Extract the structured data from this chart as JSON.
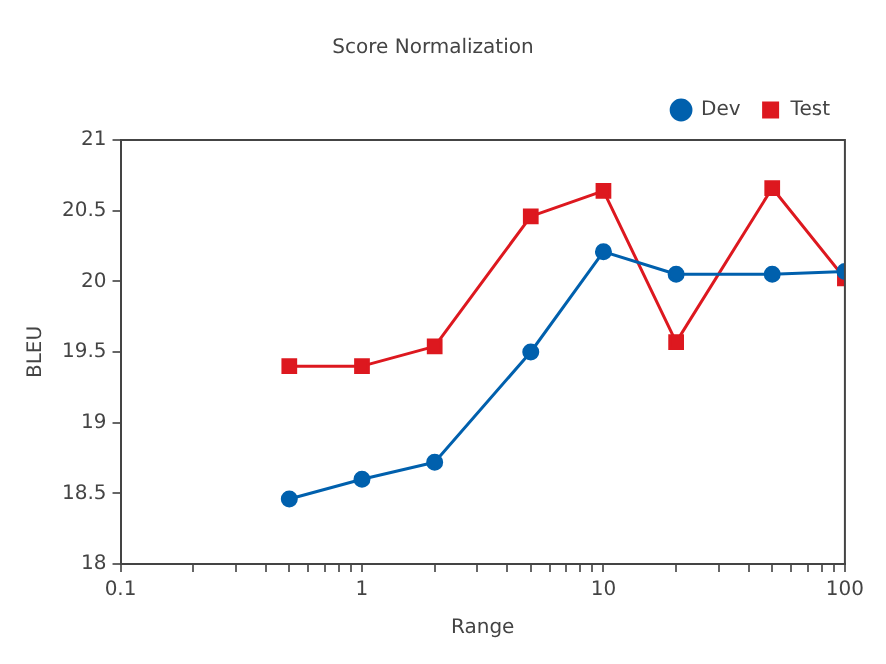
{
  "chart_data": {
    "type": "line",
    "title": "Score Normalization",
    "xlabel": "Range",
    "ylabel": "BLEU",
    "x": [
      0.5,
      1,
      2,
      5,
      10,
      20,
      50,
      100
    ],
    "series": [
      {
        "name": "Dev",
        "color": "#0060ad",
        "marker": "circle",
        "values": [
          18.46,
          18.6,
          18.72,
          19.5,
          20.21,
          20.05,
          20.05,
          20.07
        ]
      },
      {
        "name": "Test",
        "color": "#dd181f",
        "marker": "square",
        "values": [
          19.4,
          19.4,
          19.54,
          20.46,
          20.64,
          19.57,
          20.66,
          20.02
        ]
      }
    ],
    "log": "x",
    "xlim": [
      0.1,
      100
    ],
    "xticks": [
      0.1,
      {
        "value": 0.2,
        "label": null
      },
      {
        "value": 0.3,
        "label": null
      },
      {
        "value": 0.4,
        "label": null
      },
      {
        "value": 0.5,
        "label": null
      },
      {
        "value": 0.6,
        "label": null
      },
      {
        "value": 0.7,
        "label": null
      },
      {
        "value": 0.8,
        "label": null
      },
      {
        "value": 0.9,
        "label": null
      },
      1,
      {
        "value": 2,
        "label": null
      },
      {
        "value": 3,
        "label": null
      },
      {
        "value": 4,
        "label": null
      },
      {
        "value": 5,
        "label": null
      },
      {
        "value": 6,
        "label": null
      },
      {
        "value": 7,
        "label": null
      },
      {
        "value": 8,
        "label": null
      },
      {
        "value": 9,
        "label": null
      },
      10,
      {
        "value": 20,
        "label": null
      },
      {
        "value": 30,
        "label": null
      },
      {
        "value": 40,
        "label": null
      },
      {
        "value": 50,
        "label": null
      },
      {
        "value": 60,
        "label": null
      },
      {
        "value": 70,
        "label": null
      },
      {
        "value": 80,
        "label": null
      },
      {
        "value": 90,
        "label": null
      },
      100
    ],
    "ylim": [
      18,
      21
    ],
    "yticks": [
      18,
      18.5,
      19,
      19.5,
      20,
      20.5,
      21
    ],
    "grid": false,
    "legend": "top right",
    "line_style": "solid"
  }
}
